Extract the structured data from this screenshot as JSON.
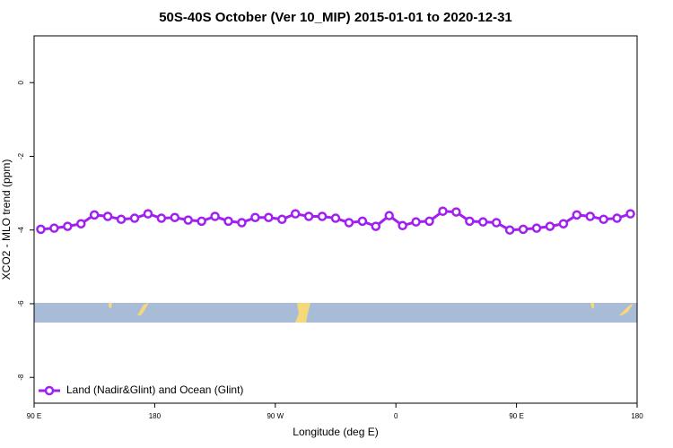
{
  "chart_data": {
    "type": "line",
    "title": "50S-40S October (Ver 10_MIP)   2015-01-01 to 2020-12-31",
    "xlabel": "Longitude (deg E)",
    "ylabel": "XCO2 - MLO trend (ppm)",
    "xlim": [
      90,
      540
    ],
    "xticks": [
      {
        "value": 90,
        "label": "90 E"
      },
      {
        "value": 180,
        "label": "180"
      },
      {
        "value": 270,
        "label": "90 W"
      },
      {
        "value": 360,
        "label": "0"
      },
      {
        "value": 450,
        "label": "90 E"
      },
      {
        "value": 540,
        "label": "180"
      }
    ],
    "ylim": [
      -8.7,
      1.27
    ],
    "yticks": [
      0,
      -2,
      -4,
      -6,
      -8
    ],
    "legend": "bottom-left",
    "x": [
      95,
      105,
      115,
      125,
      135,
      145,
      155,
      165,
      175,
      185,
      195,
      205,
      215,
      225,
      235,
      245,
      255,
      265,
      275,
      285,
      295,
      305,
      315,
      325,
      335,
      345,
      355,
      365,
      375,
      385,
      395,
      405,
      415,
      425,
      435,
      445,
      455,
      465,
      475,
      485,
      495,
      505,
      515,
      525,
      535
    ],
    "series": [
      {
        "name": "Land (Nadir&Glint) and Ocean (Glint)",
        "color": "#a020f0",
        "values": [
          -3.98,
          -3.95,
          -3.9,
          -3.83,
          -3.59,
          -3.63,
          -3.71,
          -3.68,
          -3.56,
          -3.68,
          -3.66,
          -3.73,
          -3.76,
          -3.63,
          -3.76,
          -3.8,
          -3.66,
          -3.66,
          -3.71,
          -3.56,
          -3.63,
          -3.63,
          -3.68,
          -3.8,
          -3.76,
          -3.9,
          -3.61,
          -3.88,
          -3.78,
          -3.76,
          -3.49,
          -3.51,
          -3.76,
          -3.78,
          -3.8,
          -4.0,
          -3.98,
          -3.95,
          -3.9,
          -3.83,
          -3.59,
          -3.63,
          -3.71,
          -3.68,
          -3.56
        ]
      }
    ]
  }
}
